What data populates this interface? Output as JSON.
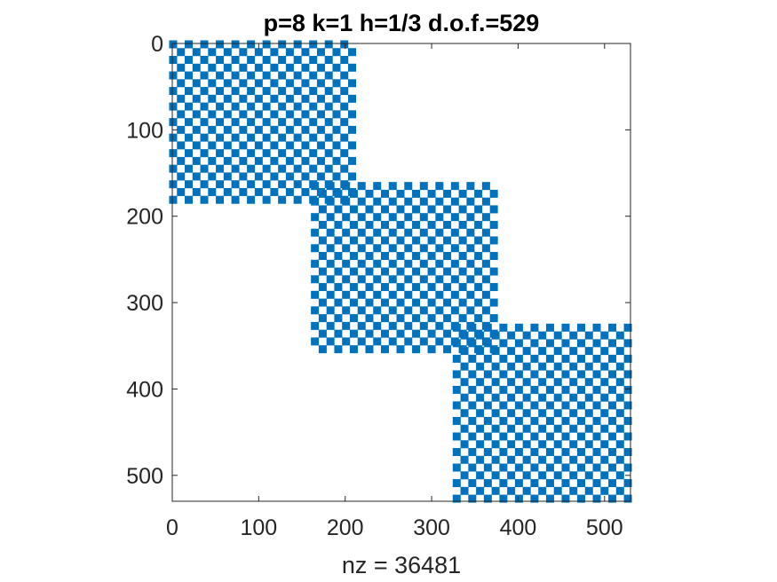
{
  "chart_data": {
    "type": "spy",
    "title": "p=8 k=1 h=1/3 d.o.f.=529",
    "xlabel": "nz = 36481",
    "ylabel": "",
    "xlim": [
      0,
      530
    ],
    "ylim": [
      530,
      0
    ],
    "xticks": [
      0,
      100,
      200,
      300,
      400,
      500
    ],
    "yticks": [
      0,
      100,
      200,
      300,
      400,
      500
    ],
    "xtick_labels": [
      "0",
      "100",
      "200",
      "300",
      "400",
      "500"
    ],
    "ytick_labels": [
      "0",
      "100",
      "200",
      "300",
      "400",
      "500"
    ],
    "matrix_size": 529,
    "nz": 36481,
    "marker_color": "#0072BD",
    "grid": false,
    "blocks": [
      {
        "row_range": [
          1,
          189
        ],
        "col_range": [
          1,
          213
        ]
      },
      {
        "row_range": [
          165,
          357
        ],
        "col_range": [
          165,
          377
        ]
      },
      {
        "row_range": [
          329,
          529
        ],
        "col_range": [
          329,
          529
        ]
      }
    ],
    "diagonal_step": 9
  }
}
